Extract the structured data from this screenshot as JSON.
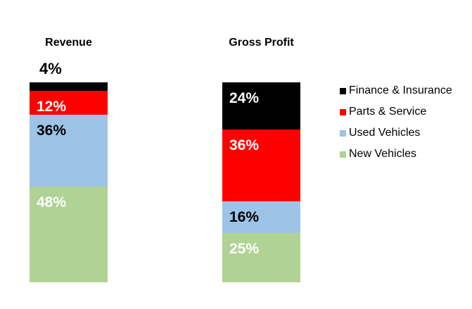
{
  "chart_data": {
    "type": "bar",
    "subtype": "100-percent-stacked-columns",
    "title": "",
    "categories": [
      "Revenue",
      "Gross Profit"
    ],
    "series": [
      {
        "name": "Finance & Insurance",
        "color": "#000000",
        "label_color": "#FFFFFF",
        "values": [
          4,
          24
        ]
      },
      {
        "name": "Parts & Service",
        "color": "#FF0000",
        "label_color": "#FFFFFF",
        "values": [
          12,
          36
        ]
      },
      {
        "name": "Used Vehicles",
        "color": "#9DC3E6",
        "label_color": "#000000",
        "values": [
          36,
          16
        ]
      },
      {
        "name": "New Vehicles",
        "color": "#B0D295",
        "label_color": "#FFFFFF",
        "values": [
          48,
          25
        ]
      }
    ],
    "value_suffix": "%",
    "data_labels": {
      "revenue": [
        "4%",
        "12%",
        "36%",
        "48%"
      ],
      "gross_profit": [
        "24%",
        "36%",
        "16%",
        "25%"
      ]
    },
    "legend": {
      "position": "right",
      "entries": [
        "Finance & Insurance",
        "Parts & Service",
        "Used Vehicles",
        "New Vehicles"
      ]
    },
    "axes_visible": false,
    "gridlines": false,
    "note": "Revenue Finance & Insurance 4% label is drawn outside, above the bar"
  },
  "colors": {
    "background": "#FFFFFF",
    "text": "#000000"
  }
}
